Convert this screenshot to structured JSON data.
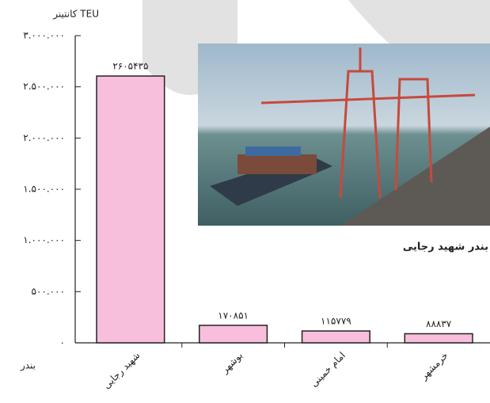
{
  "chart_data": {
    "type": "bar",
    "y_label": "کانتینر TEU",
    "x_label": "بندر",
    "annotation": "بندر شهید رجایی",
    "categories": [
      "شهید رجایی",
      "بوشهر",
      "امام خمینی",
      "خرمشهر"
    ],
    "values": [
      2605435,
      170851,
      115779,
      88837
    ],
    "value_labels": [
      "۲۶۰۵۴۳۵",
      "۱۷۰۸۵۱",
      "۱۱۵۷۷۹",
      "۸۸۸۳۷"
    ],
    "color": "#f7bfdc",
    "ylim": [
      0,
      3000000
    ],
    "yticks": [
      {
        "value": 0,
        "label": "۰"
      },
      {
        "value": 500000,
        "label": "۵۰۰.۰۰۰"
      },
      {
        "value": 1000000,
        "label": "۱.۰۰۰.۰۰۰"
      },
      {
        "value": 1500000,
        "label": "۱.۵۰۰.۰۰۰"
      },
      {
        "value": 2000000,
        "label": "۲.۰۰۰.۰۰۰"
      },
      {
        "value": 2500000,
        "label": "۲.۵۰۰.۰۰۰"
      },
      {
        "value": 3000000,
        "label": "۳.۰۰۰.۰۰۰"
      }
    ]
  }
}
